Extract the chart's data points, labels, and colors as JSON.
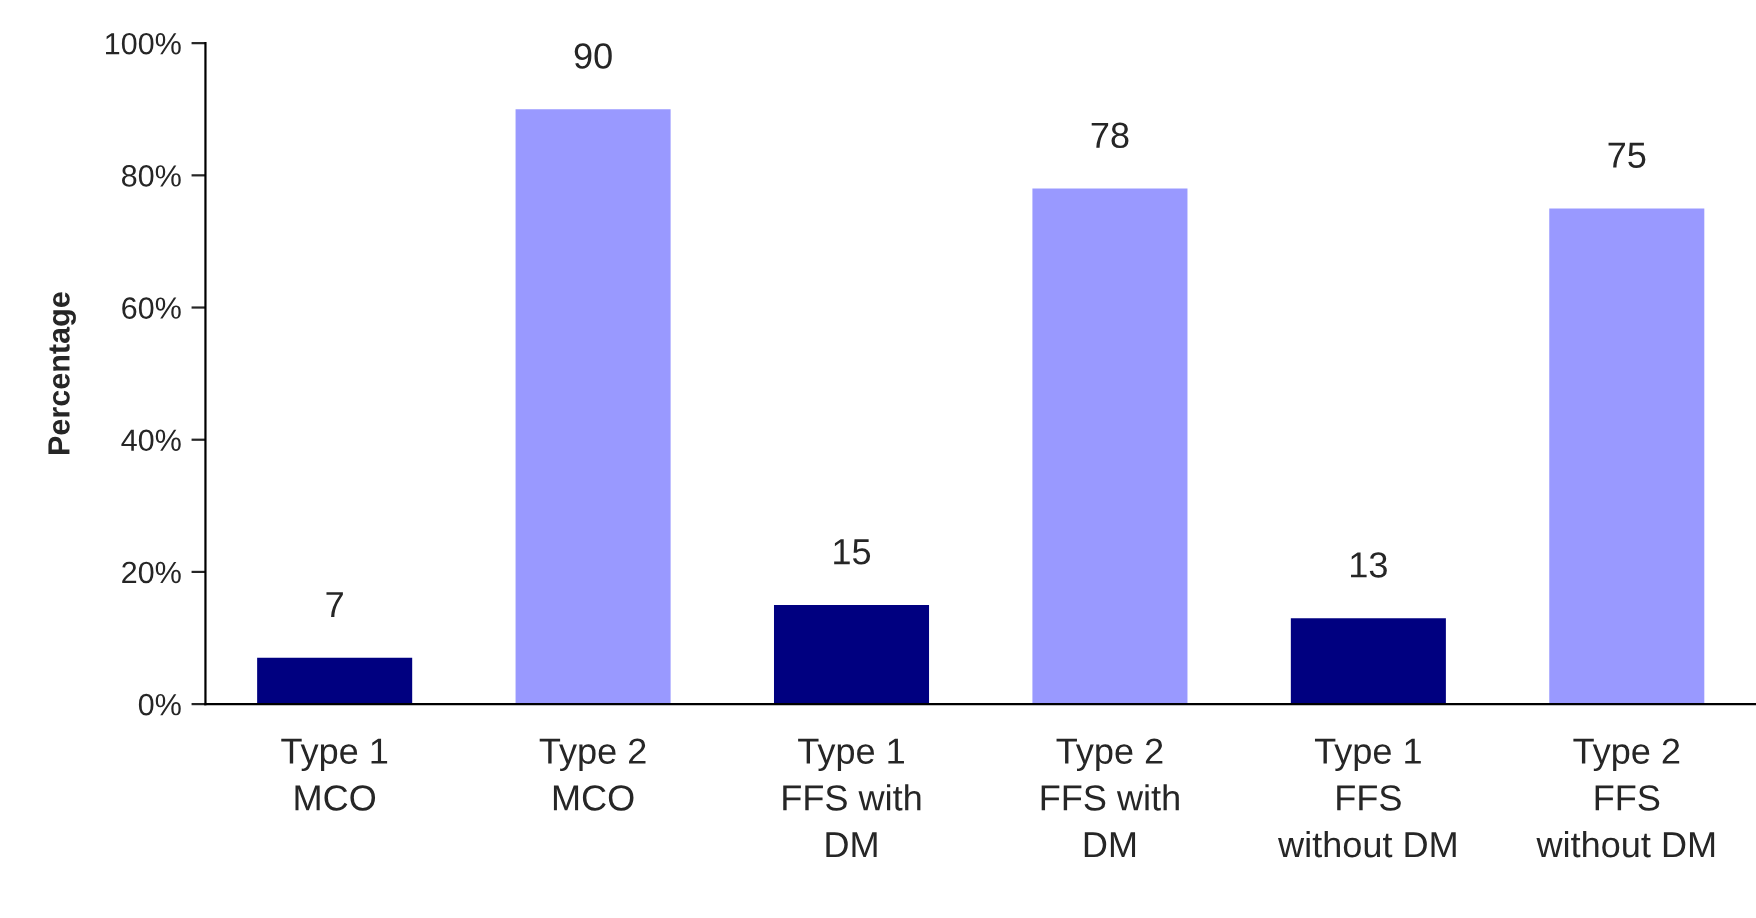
{
  "chart_data": {
    "type": "bar",
    "ylabel": "Percentage",
    "categories": [
      "Type 1\nMCO",
      "Type 2\nMCO",
      "Type 1\nFFS with\nDM",
      "Type 2\nFFS with\nDM",
      "Type 1\nFFS\nwithout DM",
      "Type 2\nFFS\nwithout DM"
    ],
    "values": [
      7,
      90,
      15,
      78,
      13,
      75
    ],
    "colors": [
      "#000080",
      "#9999ff",
      "#000080",
      "#9999ff",
      "#000080",
      "#9999ff"
    ],
    "ylim": [
      0,
      100
    ],
    "yticks": [
      {
        "value": 0,
        "label": "0%"
      },
      {
        "value": 20,
        "label": "20%"
      },
      {
        "value": 40,
        "label": "40%"
      },
      {
        "value": 60,
        "label": "60%"
      },
      {
        "value": 80,
        "label": "80%"
      },
      {
        "value": 100,
        "label": "100%"
      }
    ],
    "data_labels": true,
    "grid": false,
    "legend": false
  }
}
